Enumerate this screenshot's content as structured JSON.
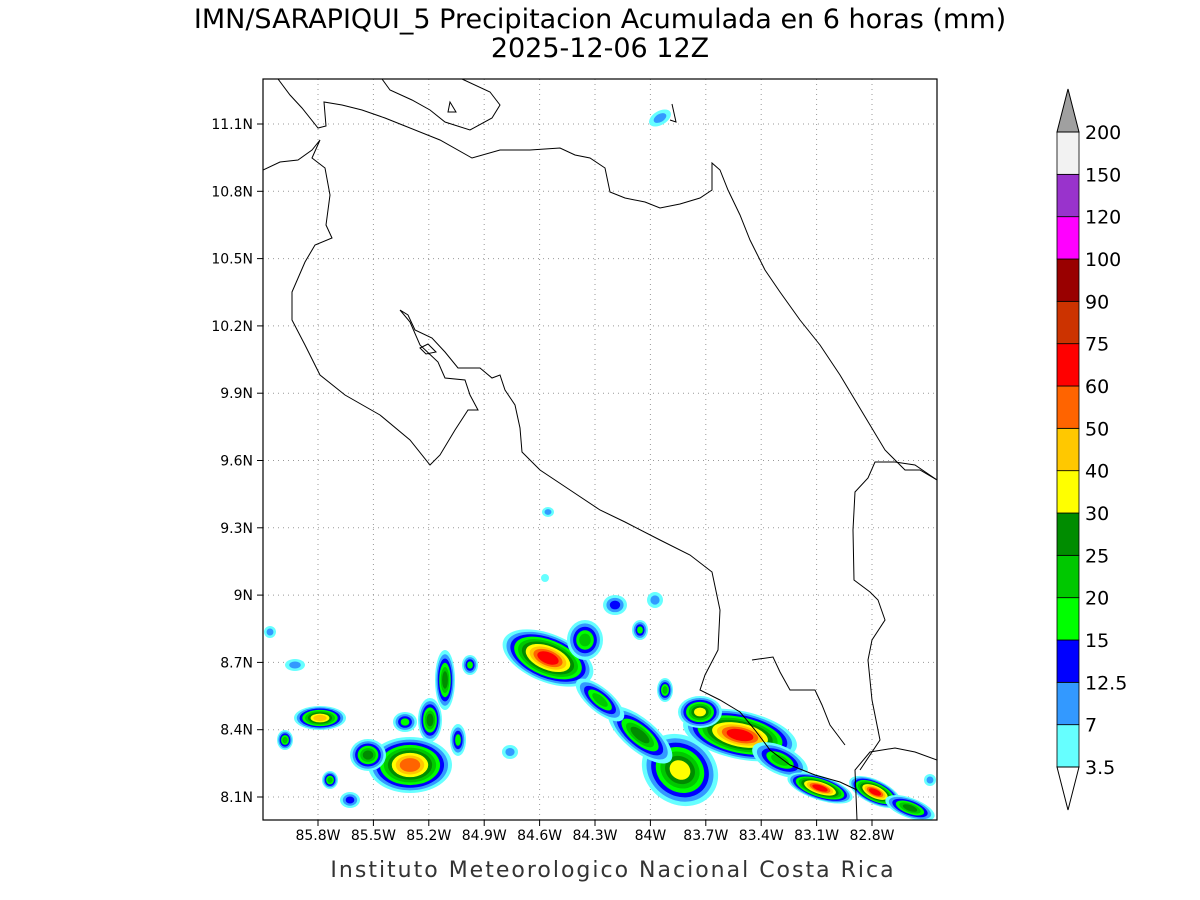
{
  "title": "IMN/SARAPIQUI_5 Precipitacion Acumulada en 6 horas (mm)",
  "subtitle": "2025-12-06 12Z",
  "footer": "Instituto Meteorologico Nacional Costa Rica",
  "map": {
    "lon_ticks": [
      {
        "value": -85.8,
        "label": "85.8W"
      },
      {
        "value": -85.5,
        "label": "85.5W"
      },
      {
        "value": -85.2,
        "label": "85.2W"
      },
      {
        "value": -84.9,
        "label": "84.9W"
      },
      {
        "value": -84.6,
        "label": "84.6W"
      },
      {
        "value": -84.3,
        "label": "84.3W"
      },
      {
        "value": -84,
        "label": "84W"
      },
      {
        "value": -83.7,
        "label": "83.7W"
      },
      {
        "value": -83.4,
        "label": "83.4W"
      },
      {
        "value": -83.1,
        "label": "83.1W"
      },
      {
        "value": -82.8,
        "label": "82.8W"
      }
    ],
    "lat_ticks": [
      {
        "value": 8.1,
        "label": "8.1N"
      },
      {
        "value": 8.4,
        "label": "8.4N"
      },
      {
        "value": 8.7,
        "label": "8.7N"
      },
      {
        "value": 9,
        "label": "9N"
      },
      {
        "value": 9.3,
        "label": "9.3N"
      },
      {
        "value": 9.6,
        "label": "9.6N"
      },
      {
        "value": 9.9,
        "label": "9.9N"
      },
      {
        "value": 10.2,
        "label": "10.2N"
      },
      {
        "value": 10.5,
        "label": "10.5N"
      },
      {
        "value": 10.8,
        "label": "10.8N"
      },
      {
        "value": 11.1,
        "label": "11.1N"
      }
    ],
    "grid": true
  },
  "colorbar": {
    "levels": [
      3.5,
      7,
      12.5,
      15,
      20,
      25,
      30,
      40,
      50,
      60,
      75,
      90,
      100,
      120,
      150,
      200
    ],
    "colors": [
      "#66ffff",
      "#3399ff",
      "#0000ff",
      "#00ff00",
      "#00c800",
      "#008c00",
      "#ffff00",
      "#ffc800",
      "#ff6400",
      "#ff0000",
      "#cc3300",
      "#990000",
      "#ff00ff",
      "#9933cc",
      "#f2f2f2"
    ],
    "under_color": "#ffffff",
    "over_color": "#a0a0a0"
  }
}
